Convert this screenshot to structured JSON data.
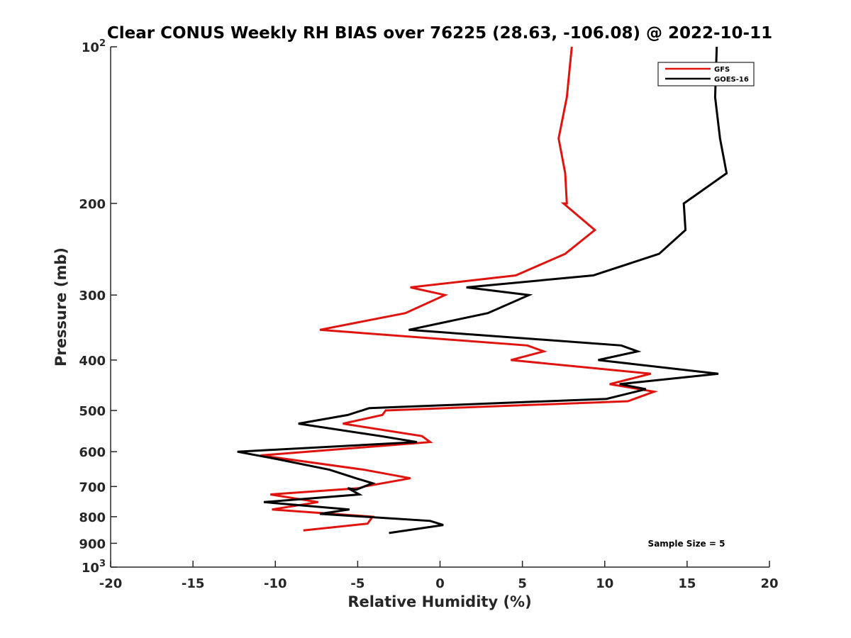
{
  "chart_data": {
    "type": "line",
    "title": "Clear CONUS Weekly RH BIAS over 76225 (28.63, -106.08) @ 2022-10-11",
    "xlabel": "Relative Humidity (%)",
    "ylabel": "Pressure (mb)",
    "xlim": [
      -20,
      20
    ],
    "ylim": [
      1000,
      100
    ],
    "yscale": "log",
    "y_reversed": true,
    "grid": false,
    "legend_position": "top-right",
    "x_ticks": [
      -20,
      -15,
      -10,
      -5,
      0,
      5,
      10,
      15,
      20
    ],
    "x_tick_labels": [
      "-20",
      "-15",
      "-10",
      "-5",
      "0",
      "5",
      "10",
      "15",
      "20"
    ],
    "y_ticks": [
      100,
      200,
      300,
      400,
      500,
      600,
      700,
      800,
      900,
      1000
    ],
    "y_tick_labels": [
      {
        "base": "10",
        "sup": "2"
      },
      {
        "base": "200",
        "sup": ""
      },
      {
        "base": "300",
        "sup": ""
      },
      {
        "base": "400",
        "sup": ""
      },
      {
        "base": "500",
        "sup": ""
      },
      {
        "base": "600",
        "sup": ""
      },
      {
        "base": "700",
        "sup": ""
      },
      {
        "base": "800",
        "sup": ""
      },
      {
        "base": "900",
        "sup": ""
      },
      {
        "base": "10",
        "sup": "3"
      }
    ],
    "series": [
      {
        "name": "GFS",
        "color": "#e0140f",
        "points": [
          [
            8.0,
            100
          ],
          [
            7.7,
            125
          ],
          [
            7.2,
            150
          ],
          [
            7.6,
            175
          ],
          [
            7.7,
            200
          ],
          [
            7.5,
            200
          ],
          [
            9.4,
            225
          ],
          [
            7.6,
            250
          ],
          [
            4.6,
            275
          ],
          [
            -1.8,
            290
          ],
          [
            0.3,
            300
          ],
          [
            -2.1,
            325
          ],
          [
            -7.3,
            350
          ],
          [
            5.3,
            375
          ],
          [
            6.3,
            385
          ],
          [
            4.3,
            400
          ],
          [
            12.8,
            425
          ],
          [
            10.3,
            445
          ],
          [
            13.0,
            460
          ],
          [
            11.4,
            480
          ],
          [
            -3.3,
            500
          ],
          [
            -3.5,
            510
          ],
          [
            -5.9,
            530
          ],
          [
            -1.1,
            560
          ],
          [
            -0.6,
            575
          ],
          [
            -10.9,
            610
          ],
          [
            -4.6,
            650
          ],
          [
            -1.8,
            675
          ],
          [
            -4.6,
            700
          ],
          [
            -4.9,
            705
          ],
          [
            -10.3,
            725
          ],
          [
            -7.4,
            750
          ],
          [
            -10.2,
            775
          ],
          [
            -4.1,
            800
          ],
          [
            -4.4,
            825
          ],
          [
            -8.3,
            850
          ]
        ]
      },
      {
        "name": "GOES-16",
        "color": "#000000",
        "points": [
          [
            16.8,
            100
          ],
          [
            16.7,
            125
          ],
          [
            17.0,
            150
          ],
          [
            17.4,
            175
          ],
          [
            15.8,
            190
          ],
          [
            14.8,
            200
          ],
          [
            14.9,
            225
          ],
          [
            13.3,
            250
          ],
          [
            9.3,
            275
          ],
          [
            1.6,
            290
          ],
          [
            5.4,
            300
          ],
          [
            2.9,
            325
          ],
          [
            -1.9,
            350
          ],
          [
            11.0,
            375
          ],
          [
            12.0,
            385
          ],
          [
            9.6,
            400
          ],
          [
            16.9,
            425
          ],
          [
            10.9,
            445
          ],
          [
            12.5,
            455
          ],
          [
            10.1,
            475
          ],
          [
            -4.3,
            495
          ],
          [
            -5.6,
            510
          ],
          [
            -8.6,
            530
          ],
          [
            -3.6,
            560
          ],
          [
            -1.4,
            575
          ],
          [
            -12.3,
            600
          ],
          [
            -9.9,
            620
          ],
          [
            -6.7,
            650
          ],
          [
            -5.1,
            675
          ],
          [
            -4.1,
            690
          ],
          [
            -5.1,
            710
          ],
          [
            -5.6,
            705
          ],
          [
            -4.9,
            725
          ],
          [
            -10.7,
            750
          ],
          [
            -5.5,
            775
          ],
          [
            -7.3,
            790
          ],
          [
            -0.6,
            815
          ],
          [
            0.2,
            830
          ],
          [
            -3.1,
            860
          ]
        ]
      }
    ],
    "annotations": [
      {
        "text": "Sample Size = 5",
        "position": "bottom-right"
      }
    ]
  }
}
